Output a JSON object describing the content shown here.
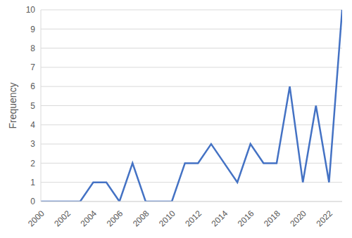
{
  "chart_data": {
    "type": "line",
    "y_label": "Frequency",
    "x": [
      2000,
      2001,
      2002,
      2003,
      2004,
      2005,
      2006,
      2007,
      2008,
      2009,
      2010,
      2011,
      2012,
      2013,
      2014,
      2015,
      2016,
      2017,
      2018,
      2019,
      2020,
      2021,
      2022,
      2023
    ],
    "values": [
      0,
      0,
      0,
      0,
      1,
      1,
      0,
      2,
      0,
      0,
      0,
      2,
      2,
      3,
      2,
      1,
      3,
      2,
      2,
      6,
      1,
      5,
      1,
      10
    ],
    "color": "#4472c4",
    "xlim": [
      2000,
      2023
    ],
    "xticks": [
      2000,
      2002,
      2004,
      2006,
      2008,
      2010,
      2012,
      2014,
      2016,
      2018,
      2020,
      2022
    ],
    "ylim": [
      0,
      10
    ],
    "yticks": [
      0,
      1,
      2,
      3,
      4,
      5,
      6,
      7,
      8,
      9,
      10
    ],
    "grid": true
  }
}
